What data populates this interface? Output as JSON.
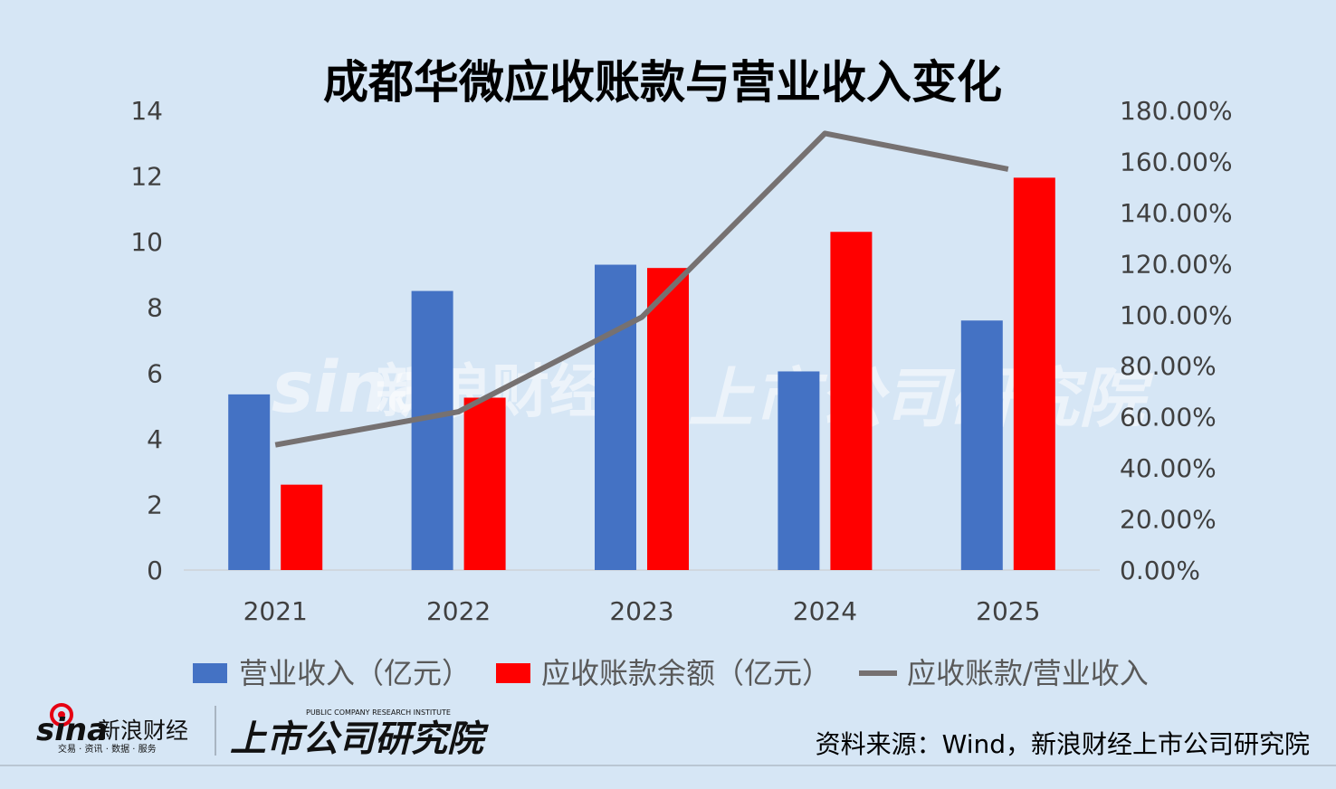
{
  "chart_data": {
    "type": "bar",
    "title": "成都华微应收账款与营业收入变化",
    "categories": [
      "2021",
      "2022",
      "2023",
      "2024",
      "2025"
    ],
    "series": [
      {
        "name": "营业收入（亿元）",
        "type": "bar",
        "axis": "left",
        "color": "#4472c4",
        "values": [
          5.35,
          8.5,
          9.3,
          6.05,
          7.6
        ]
      },
      {
        "name": "应收账款余额（亿元）",
        "type": "bar",
        "axis": "left",
        "color": "#ff0000",
        "values": [
          2.6,
          5.25,
          9.2,
          10.3,
          11.95
        ]
      },
      {
        "name": "应收账款/营业收入",
        "type": "line",
        "axis": "right",
        "color": "#767171",
        "values": [
          49,
          62,
          99,
          171,
          157
        ]
      }
    ],
    "ylim": [
      0,
      14
    ],
    "y_ticks": [
      "0",
      "2",
      "4",
      "6",
      "8",
      "10",
      "12",
      "14"
    ],
    "y2lim": [
      0,
      180
    ],
    "y2_ticks": [
      "0.00%",
      "20.00%",
      "40.00%",
      "60.00%",
      "80.00%",
      "100.00%",
      "120.00%",
      "140.00%",
      "160.00%",
      "180.00%"
    ],
    "grid": false,
    "legend_position": "bottom"
  },
  "source_text": "资料来源：Wind，新浪财经上市公司研究院",
  "logos": {
    "sina_mark": "sina",
    "sina_name": "新浪财经",
    "sina_tagline": "交易 · 资讯 · 数据 · 服务",
    "institute_name": "上市公司研究院",
    "institute_en": "PUBLIC COMPANY RESEARCH INSTITUTE"
  },
  "colors": {
    "background": "#d6e6f5",
    "bar_blue": "#4472c4",
    "bar_red": "#ff0000",
    "line_gray": "#767171"
  }
}
